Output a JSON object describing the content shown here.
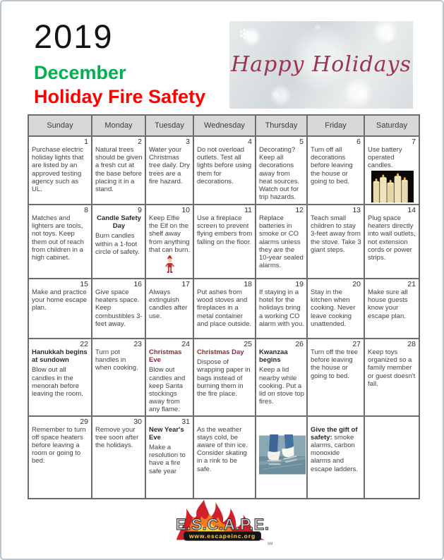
{
  "header": {
    "year": "2019",
    "month": "December",
    "subtitle": "Holiday Fire Safety",
    "banner_text": "Happy Holidays"
  },
  "icons": {
    "snowflake": "❄"
  },
  "theme": {
    "--green": "#00B050",
    "--red": "#FF0000",
    "--holiday": "#8B2E34",
    "--script": "#9C3350"
  },
  "weekdays": [
    "Sunday",
    "Monday",
    "Tuesday",
    "Wednesday",
    "Thursday",
    "Friday",
    "Saturday"
  ],
  "weeks": [
    [
      {
        "date": "1",
        "text": "Purchase electric holiday lights that are listed by an approved testing agency such as UL."
      },
      {
        "date": "2",
        "text": "Natural trees should be given a fresh cut at the base before placing it in a stand."
      },
      {
        "date": "3",
        "text": "Water your Christmas tree daily. Dry trees are a fire hazard."
      },
      {
        "date": "4",
        "text": "Do not overload outlets. Test all lights before using them for decorations."
      },
      {
        "date": "5",
        "text": "Decorating? Keep all decorations away from heat sources. Watch out for trip hazards."
      },
      {
        "date": "6",
        "text": "Turn off all decorations before leaving the house or going to bed."
      },
      {
        "date": "7",
        "text": "Use battery operated candles.",
        "image": "candles"
      }
    ],
    [
      {
        "date": "8",
        "text": "Matches and lighters are tools, not toys. Keep them out of reach from children in a high cabinet."
      },
      {
        "date": "9",
        "heading": "Candle Safety Day",
        "heading_align": "center",
        "text": "Burn candles within a 1-foot circle of safety."
      },
      {
        "date": "10",
        "text": "Keep Elfie the Elf on the shelf away from anything that can burn.",
        "image": "elf"
      },
      {
        "date": "11",
        "text": "Use a fireplace screen to prevent flying embers from falling on the floor."
      },
      {
        "date": "12",
        "text": "Replace batteries in smoke or CO alarms unless they are the 10-year sealed alarms."
      },
      {
        "date": "13",
        "text": "Teach small children to stay 3-feet away from the stove. Take 3 giant steps."
      },
      {
        "date": "14",
        "text": "Plug space heaters directly into wall outlets, not extension cords or power strips."
      }
    ],
    [
      {
        "date": "15",
        "text": "Make and practice your home escape plan."
      },
      {
        "date": "16",
        "text": "Give space heaters space. Keep combustibles 3-feet away."
      },
      {
        "date": "17",
        "text": "Always extinguish candles after use."
      },
      {
        "date": "18",
        "text": "Put ashes from wood stoves and fireplaces in a metal container and place outside."
      },
      {
        "date": "19",
        "text": "If staying in a hotel for the holidays bring a working CO alarm with you."
      },
      {
        "date": "20",
        "text": "Stay in the kitchen when cooking. Never leave cooking unattended."
      },
      {
        "date": "21",
        "text": "Make sure all house guests know your escape plan."
      }
    ],
    [
      {
        "date": "22",
        "heading": "Hanukkah begins at sundown",
        "text": "Blow out all candles in the menorah before leaving the room."
      },
      {
        "date": "23",
        "text": "Turn pot handles in when cooking."
      },
      {
        "date": "24",
        "heading": "Christmas Eve",
        "heading_color": "red",
        "text": "Blow out candles and keep Santa stockings away from any flame."
      },
      {
        "date": "25",
        "heading": "Christmas Day",
        "heading_color": "red",
        "text": "Dispose of wrapping paper in bags instead of burning them in the fire place."
      },
      {
        "date": "26",
        "heading": "Kwanzaa begins",
        "text": "Keep a lid nearby while cooking. Put a lid on stove top fires."
      },
      {
        "date": "27",
        "text": "Turn off the tree before leaving the house or going to bed."
      },
      {
        "date": "28",
        "text": "Keep toys organized so a family member or guest doesn't fall."
      }
    ],
    [
      {
        "date": "29",
        "text": "Remember to turn off space heaters before leaving a room or going to bed."
      },
      {
        "date": "30",
        "text": "Remove your tree soon after the holidays."
      },
      {
        "date": "31",
        "heading": "New Year's Eve",
        "text": "Make a resolution to have a fire safe year"
      },
      {
        "date": "",
        "text": "As the weather stays cold, be aware of thin ice. Consider skating in a rink to be safe."
      },
      {
        "date": "",
        "image": "skates"
      },
      {
        "date": "",
        "bold_inline": "Give the gift of safety:",
        "text": "  smoke alarms, carbon monoxide alarms and escape ladders."
      },
      {
        "date": ""
      }
    ]
  ],
  "footer": {
    "logo_text": "E.S.C.A.P.E.",
    "logo_url": "www.escapeinc.org",
    "trademark": "SM"
  }
}
